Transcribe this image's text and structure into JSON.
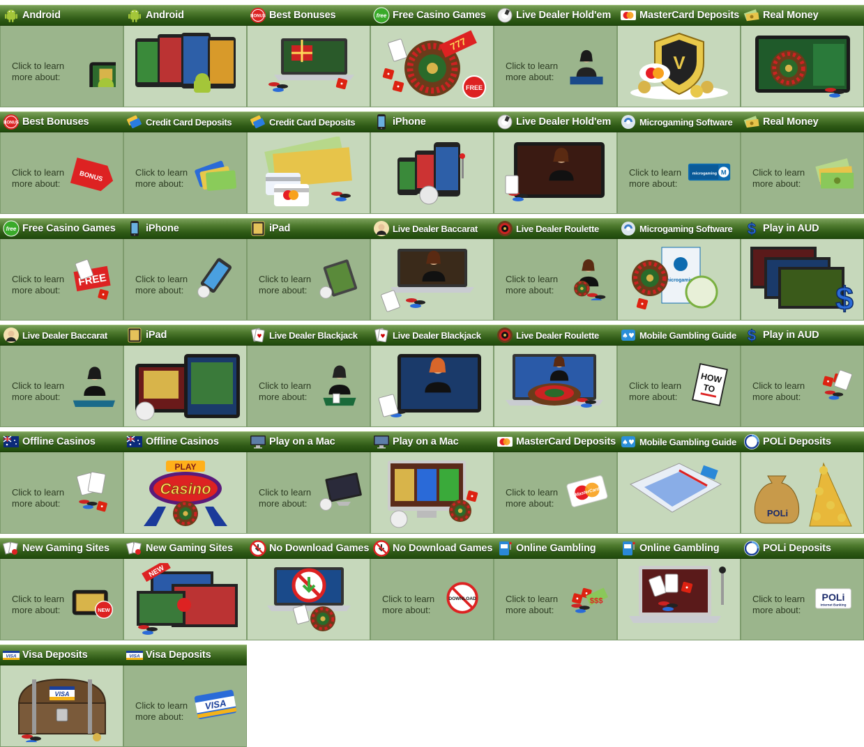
{
  "learn_text": "Click to learn more about:",
  "tiles": [
    {
      "title": "Android",
      "icon": "android-icon",
      "style": "learn",
      "pic": "tablet"
    },
    {
      "title": "Android",
      "icon": "android-icon",
      "style": "image",
      "pic": "phones"
    },
    {
      "title": "Best Bonuses",
      "icon": "bonus-icon",
      "style": "image",
      "pic": "laptop-gift"
    },
    {
      "title": "Free Casino Games",
      "icon": "free-badge-icon",
      "style": "image",
      "pic": "roulette-free"
    },
    {
      "title": "Live Dealer Hold'em",
      "icon": "poker-chip-icon",
      "style": "learn",
      "pic": "dealer"
    },
    {
      "title": "MasterCard Deposits",
      "icon": "mastercard-icon",
      "style": "image",
      "pic": "shield-coins"
    },
    {
      "title": "Real Money",
      "icon": "cash-icon",
      "style": "image",
      "pic": "tablet-roulette"
    },
    {
      "title": "Best Bonuses",
      "icon": "bonus-icon",
      "style": "learn",
      "pic": "bonus-tag"
    },
    {
      "title": "Credit Card Deposits",
      "icon": "credit-card-icon",
      "style": "learn",
      "pic": "cards"
    },
    {
      "title": "Credit Card Deposits",
      "icon": "credit-card-icon",
      "style": "image",
      "pic": "cash-cards"
    },
    {
      "title": "iPhone",
      "icon": "iphone-icon",
      "style": "image",
      "pic": "iphones"
    },
    {
      "title": "Live Dealer Hold'em",
      "icon": "poker-chip-icon",
      "style": "image",
      "pic": "tablet-dealer"
    },
    {
      "title": "Microgaming Software",
      "icon": "microgaming-icon",
      "style": "learn",
      "pic": "microgaming-logo"
    },
    {
      "title": "Real Money",
      "icon": "cash-icon",
      "style": "learn",
      "pic": "cash"
    },
    {
      "title": "Free Casino Games",
      "icon": "free-badge-icon",
      "style": "learn",
      "pic": "free-sign"
    },
    {
      "title": "iPhone",
      "icon": "iphone-icon",
      "style": "learn",
      "pic": "iphone-tilt"
    },
    {
      "title": "iPad",
      "icon": "ipad-icon",
      "style": "learn",
      "pic": "ipad-stand"
    },
    {
      "title": "Live Dealer Baccarat",
      "icon": "dealer-icon",
      "style": "image",
      "pic": "laptop-dealer"
    },
    {
      "title": "Live Dealer Roulette",
      "icon": "roulette-icon",
      "style": "learn",
      "pic": "dealer-wheel"
    },
    {
      "title": "Microgaming Software",
      "icon": "microgaming-icon",
      "style": "image",
      "pic": "software-box"
    },
    {
      "title": "Play in AUD",
      "icon": "dollar-icon",
      "style": "image",
      "pic": "screens-dollar"
    },
    {
      "title": "Live Dealer Baccarat",
      "icon": "dealer-icon",
      "style": "learn",
      "pic": "dealer-table"
    },
    {
      "title": "iPad",
      "icon": "ipad-icon",
      "style": "image",
      "pic": "ipads"
    },
    {
      "title": "Live Dealer Blackjack",
      "icon": "cards-icon",
      "style": "learn",
      "pic": "dealer-male"
    },
    {
      "title": "Live Dealer Blackjack",
      "icon": "cards-icon",
      "style": "image",
      "pic": "tablet-redhead"
    },
    {
      "title": "Live Dealer Roulette",
      "icon": "roulette-icon",
      "style": "image",
      "pic": "laptop-roulette"
    },
    {
      "title": "Mobile Gambling Guide",
      "icon": "mobile-cards-icon",
      "style": "learn",
      "pic": "howto-book"
    },
    {
      "title": "Play in AUD",
      "icon": "dollar-icon",
      "style": "learn",
      "pic": "dice-chips"
    },
    {
      "title": "Offline Casinos",
      "icon": "australia-flag-icon",
      "style": "learn",
      "pic": "cards-chips"
    },
    {
      "title": "Offline Casinos",
      "icon": "australia-flag-icon",
      "style": "image",
      "pic": "casino-sign"
    },
    {
      "title": "Play on a Mac",
      "icon": "mac-monitor-icon",
      "style": "learn",
      "pic": "imac"
    },
    {
      "title": "Play on a Mac",
      "icon": "mac-monitor-icon",
      "style": "image",
      "pic": "imac-slots"
    },
    {
      "title": "MasterCard Deposits",
      "icon": "mastercard-icon",
      "style": "learn",
      "pic": "mastercard"
    },
    {
      "title": "Mobile Gambling Guide",
      "icon": "mobile-cards-icon",
      "style": "image",
      "pic": "guide-book"
    },
    {
      "title": "POLi Deposits",
      "icon": "poli-icon",
      "style": "image",
      "pic": "poli-bag"
    },
    {
      "title": "New Gaming Sites",
      "icon": "new-sites-icon",
      "style": "learn",
      "pic": "tablet-new"
    },
    {
      "title": "New Gaming Sites",
      "icon": "new-sites-icon",
      "style": "image",
      "pic": "screens-new"
    },
    {
      "title": "No Download Games",
      "icon": "no-download-icon",
      "style": "image",
      "pic": "laptop-no"
    },
    {
      "title": "No Download Games",
      "icon": "no-download-icon",
      "style": "learn",
      "pic": "no-download-sign"
    },
    {
      "title": "Online Gambling",
      "icon": "slot-machine-icon",
      "style": "learn",
      "pic": "dice-money"
    },
    {
      "title": "Online Gambling",
      "icon": "slot-machine-icon",
      "style": "image",
      "pic": "laptop-slot"
    },
    {
      "title": "POLi Deposits",
      "icon": "poli-icon",
      "style": "learn",
      "pic": "poli-logo"
    },
    {
      "title": "Visa Deposits",
      "icon": "visa-icon",
      "style": "image",
      "pic": "treasure-chest"
    },
    {
      "title": "Visa Deposits",
      "icon": "visa-icon",
      "style": "learn",
      "pic": "visa-card"
    }
  ],
  "pic_text": {
    "bonus_tag": "BONUS",
    "free_sign": "FREE",
    "free_badge": "FREE",
    "visa": "VISA",
    "mastercard": "MasterCard",
    "poli": "POLi",
    "poli_sub": "Internet Banking",
    "new": "NEW",
    "howto_a": "HOW",
    "howto_b": "TO",
    "no_download": "DOWNLOAD",
    "casino": "Casino",
    "play": "PLAY",
    "microgaming": "microgaming",
    "icon_bonus": "BONUS",
    "icon_free": "free"
  }
}
